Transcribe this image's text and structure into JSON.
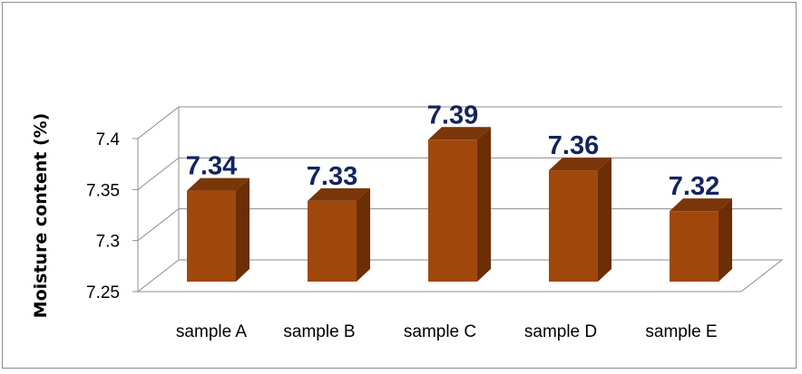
{
  "chart_data": {
    "type": "bar",
    "style": "3d-column",
    "categories": [
      "sample A",
      "sample B",
      "sample C",
      "sample D",
      "sample E"
    ],
    "values": [
      7.34,
      7.33,
      7.39,
      7.36,
      7.32
    ],
    "data_labels": [
      "7.34",
      "7.33",
      "7.39",
      "7.36",
      "7.32"
    ],
    "title": "",
    "xlabel": "",
    "ylabel": "Moisture content (%)",
    "ylim": [
      7.25,
      7.4
    ],
    "yticks": [
      7.25,
      7.3,
      7.35,
      7.4
    ],
    "ytick_labels": [
      "7.25",
      "7.3",
      "7.35",
      "7.4"
    ],
    "grid": true,
    "legend": "none",
    "colors": {
      "bar_front": "#a0480c",
      "bar_side": "#6b2e05",
      "bar_top": "#7a3608",
      "data_label": "#13245e",
      "gridline": "#8c8c8c"
    }
  }
}
